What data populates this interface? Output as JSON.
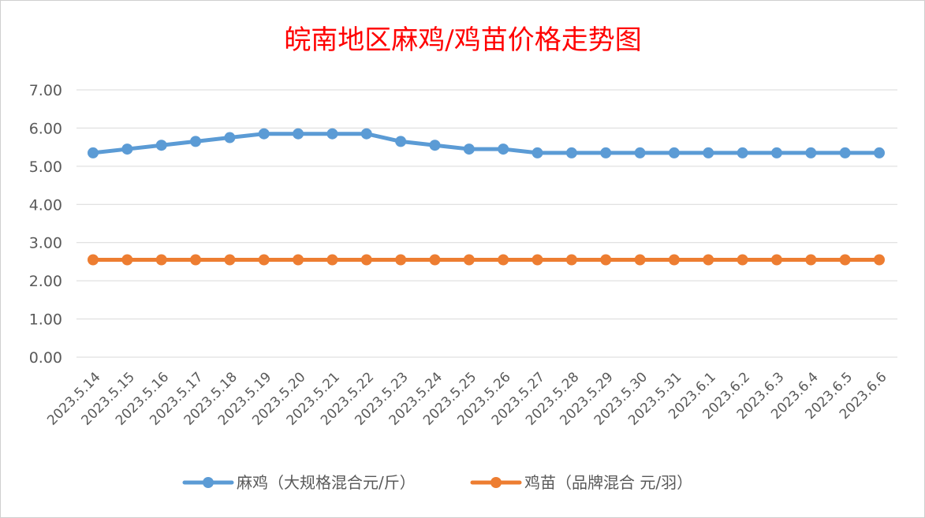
{
  "chart_data": {
    "type": "line",
    "title": "皖南地区麻鸡/鸡苗价格走势图",
    "xlabel": "",
    "ylabel": "",
    "ylim": [
      0,
      7
    ],
    "y_ticks": [
      "0.00",
      "1.00",
      "2.00",
      "3.00",
      "4.00",
      "5.00",
      "6.00",
      "7.00"
    ],
    "grid": true,
    "legend_position": "bottom",
    "categories": [
      "2023.5.14",
      "2023.5.15",
      "2023.5.16",
      "2023.5.17",
      "2023.5.18",
      "2023.5.19",
      "2023.5.20",
      "2023.5.21",
      "2023.5.22",
      "2023.5.23",
      "2023.5.24",
      "2023.5.25",
      "2023.5.26",
      "2023.5.27",
      "2023.5.28",
      "2023.5.29",
      "2023.5.30",
      "2023.5.31",
      "2023.6.1",
      "2023.6.2",
      "2023.6.3",
      "2023.6.4",
      "2023.6.5",
      "2023.6.6"
    ],
    "series": [
      {
        "name": "麻鸡（大规格混合元/斤）",
        "color": "#5b9bd5",
        "values": [
          5.35,
          5.45,
          5.55,
          5.65,
          5.75,
          5.85,
          5.85,
          5.85,
          5.85,
          5.65,
          5.55,
          5.45,
          5.45,
          5.35,
          5.35,
          5.35,
          5.35,
          5.35,
          5.35,
          5.35,
          5.35,
          5.35,
          5.35,
          5.35
        ]
      },
      {
        "name": "鸡苗（品牌混合 元/羽）",
        "color": "#ed7d31",
        "values": [
          2.55,
          2.55,
          2.55,
          2.55,
          2.55,
          2.55,
          2.55,
          2.55,
          2.55,
          2.55,
          2.55,
          2.55,
          2.55,
          2.55,
          2.55,
          2.55,
          2.55,
          2.55,
          2.55,
          2.55,
          2.55,
          2.55,
          2.55,
          2.55
        ]
      }
    ]
  }
}
